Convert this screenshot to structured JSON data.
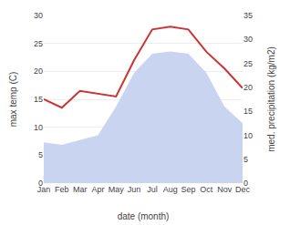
{
  "chart_data": {
    "type": "line",
    "categories": [
      "Jan",
      "Feb",
      "Mar",
      "Apr",
      "May",
      "Jun",
      "Jul",
      "Aug",
      "Sep",
      "Oct",
      "Nov",
      "Dec"
    ],
    "series": [
      {
        "type": "area",
        "color": "#c8d4f0",
        "axis": "y2",
        "values": [
          8.5,
          8.0,
          9.0,
          10.0,
          16.0,
          23.0,
          27.0,
          27.5,
          27.0,
          23.0,
          16.0,
          12.5
        ]
      },
      {
        "type": "line",
        "color": "#cc3333",
        "values": [
          15.0,
          13.5,
          16.5,
          16.0,
          15.5,
          22.0,
          27.5,
          28.0,
          27.5,
          23.5,
          20.5,
          17.0
        ]
      }
    ],
    "xlabel": "date (month)",
    "ylabel": "max temp (C)",
    "y2label": "med. precipitation (kg/m2)",
    "ylim": [
      0,
      30
    ],
    "yticks": [
      0,
      5,
      10,
      15,
      20,
      25,
      30
    ],
    "y2lim": [
      0,
      35
    ],
    "y2ticks": [
      0,
      5,
      10,
      15,
      20,
      25,
      30,
      35
    ],
    "grid": true
  }
}
